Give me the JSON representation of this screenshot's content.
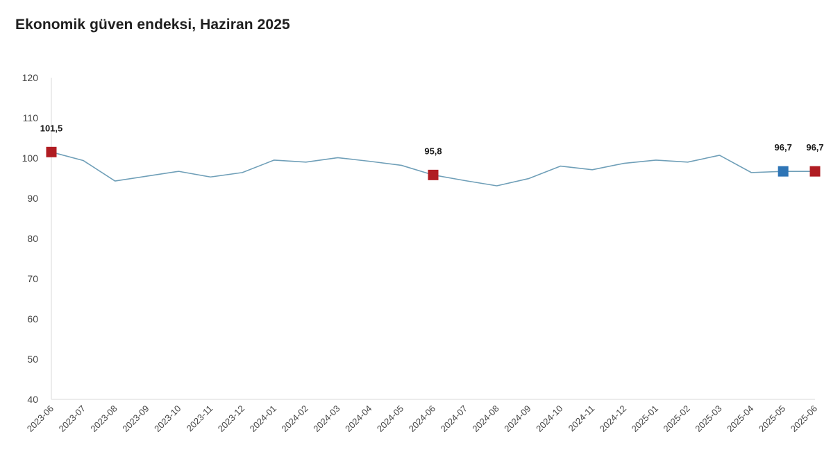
{
  "title": "Ekonomik güven endeksi, Haziran 2025",
  "chart_data": {
    "type": "line",
    "title": "Ekonomik güven endeksi, Haziran 2025",
    "xlabel": "",
    "ylabel": "",
    "ylim": [
      40,
      120
    ],
    "yticks": [
      40,
      50,
      60,
      70,
      80,
      90,
      100,
      110,
      120
    ],
    "grid": false,
    "categories": [
      "2023-06",
      "2023-07",
      "2023-08",
      "2023-09",
      "2023-10",
      "2023-11",
      "2023-12",
      "2024-01",
      "2024-02",
      "2024-03",
      "2024-04",
      "2024-05",
      "2024-06",
      "2024-07",
      "2024-08",
      "2024-09",
      "2024-10",
      "2024-11",
      "2024-12",
      "2025-01",
      "2025-02",
      "2025-03",
      "2025-04",
      "2025-05",
      "2025-06"
    ],
    "series": [
      {
        "values": [
          101.5,
          99.4,
          94.3,
          95.5,
          96.7,
          95.3,
          96.4,
          99.5,
          99.0,
          100.1,
          99.2,
          98.2,
          95.8,
          94.4,
          93.1,
          94.9,
          98.0,
          97.1,
          98.7,
          99.5,
          99.0,
          100.7,
          96.4,
          96.7,
          96.7
        ],
        "color": "#6f9fb8"
      }
    ],
    "highlights": [
      {
        "index": 0,
        "label": "101,5",
        "color": "#b01c22"
      },
      {
        "index": 12,
        "label": "95,8",
        "color": "#b01c22"
      },
      {
        "index": 23,
        "label": "96,7",
        "color": "#2e75b6"
      },
      {
        "index": 24,
        "label": "96,7",
        "color": "#b01c22"
      }
    ],
    "axis_color": "#d9d9d9"
  }
}
